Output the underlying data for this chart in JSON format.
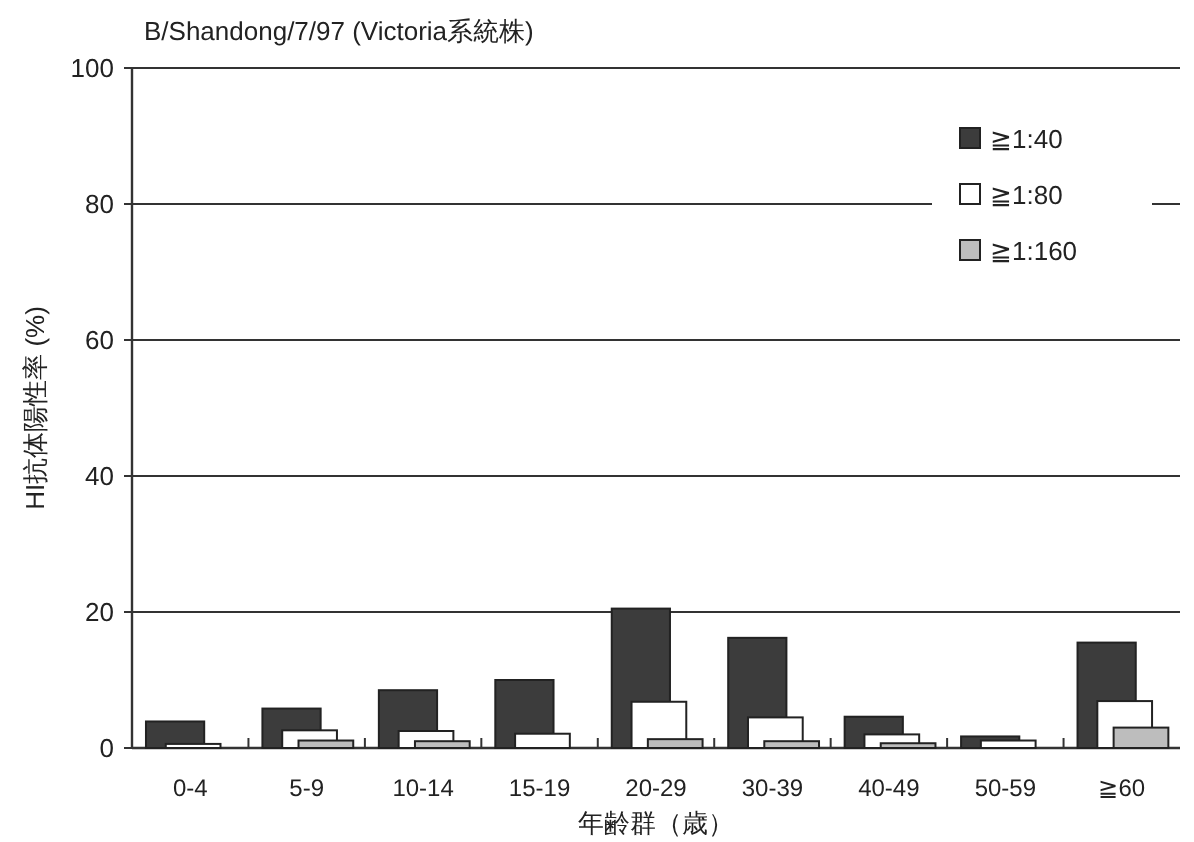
{
  "chart_data": {
    "type": "bar",
    "title": "B/Shandong/7/97 (Victoria系統株)",
    "xlabel": "年齢群（歳）",
    "ylabel": "HI抗体陽性率 (%)",
    "categories": [
      "0-4",
      "5-9",
      "10-14",
      "15-19",
      "20-29",
      "30-39",
      "40-49",
      "50-59",
      "≧60"
    ],
    "series": [
      {
        "name": "≧1:40",
        "color": "#3c3c3c",
        "values": [
          3.9,
          5.8,
          8.5,
          10,
          20.5,
          16.2,
          4.6,
          1.7,
          15.5
        ]
      },
      {
        "name": "≧1:80",
        "color": "#ffffff",
        "values": [
          0.6,
          2.6,
          2.5,
          2.1,
          6.8,
          4.5,
          2.0,
          1.1,
          6.9
        ]
      },
      {
        "name": "≧1:160",
        "color": "#bdbdbd",
        "values": [
          0,
          1.1,
          1.0,
          0,
          1.3,
          1.0,
          0.7,
          0,
          3.0
        ]
      }
    ],
    "ylim": [
      0,
      100
    ],
    "yticks": [
      0,
      20,
      40,
      60,
      80,
      100
    ],
    "grid": "y",
    "legend": "top right"
  }
}
